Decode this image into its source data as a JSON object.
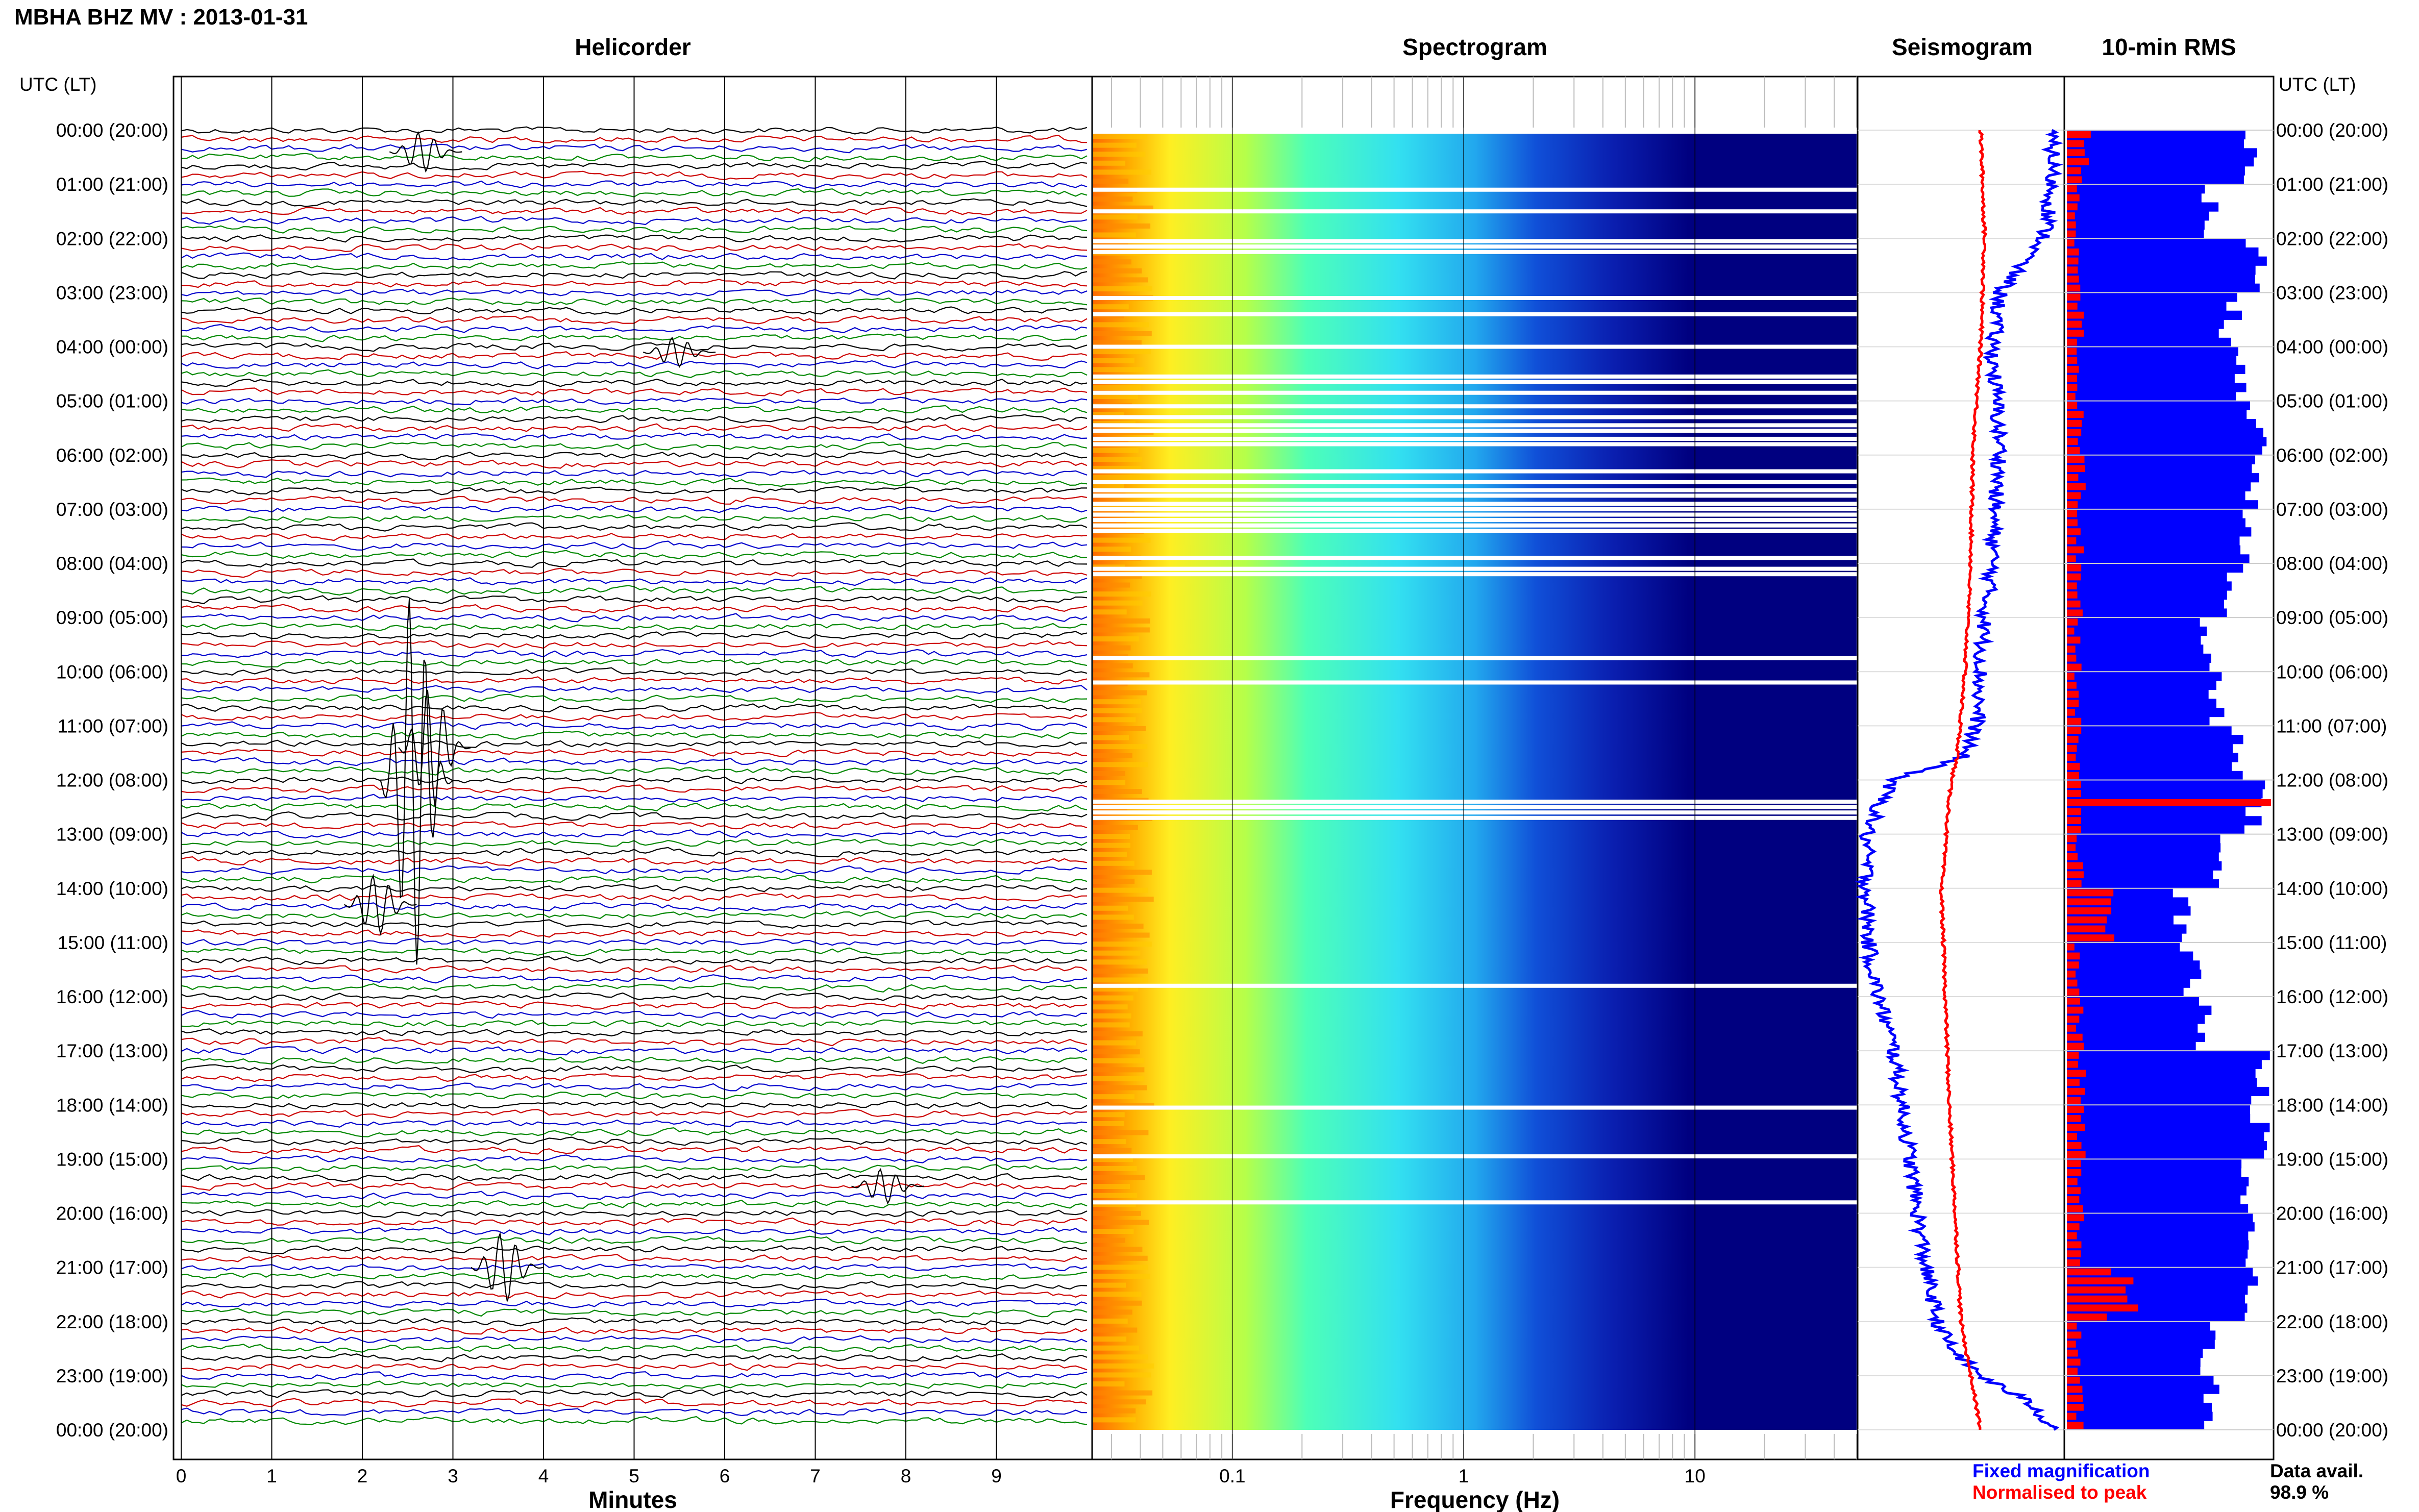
{
  "header": {
    "title": "MBHA BHZ MV : 2013-01-31",
    "utc_label_left": "UTC (LT)",
    "utc_label_right": "UTC (LT)"
  },
  "panels": {
    "helicorder": "Helicorder",
    "spectrogram": "Spectrogram",
    "seismogram": "Seismogram",
    "rms": "10-min RMS"
  },
  "colors": {
    "trace_cycle": [
      "#000000",
      "#cc0000",
      "#0000cc",
      "#008800"
    ],
    "spec_low": "#000080",
    "fixed_magnification": "#0000ff",
    "normalised_to_peak": "#ff0000"
  },
  "legend": {
    "fixed_magnification": "Fixed magnification",
    "normalised_to_peak": "Normalised to peak",
    "data_avail_label": "Data avail.",
    "data_avail_value": "98.9 %"
  },
  "chart_data": [
    {
      "type": "line",
      "title": "Helicorder",
      "xlabel": "Minutes",
      "x_ticks": [
        "0",
        "1",
        "2",
        "3",
        "4",
        "5",
        "6",
        "7",
        "8",
        "9"
      ],
      "xlim": [
        0,
        10
      ],
      "rows": 144,
      "row_minutes": 10,
      "hour_labels": [
        "00:00 (20:00)",
        "01:00 (21:00)",
        "02:00 (22:00)",
        "03:00 (23:00)",
        "04:00 (00:00)",
        "05:00 (01:00)",
        "06:00 (02:00)",
        "07:00 (03:00)",
        "08:00 (04:00)",
        "09:00 (05:00)",
        "10:00 (06:00)",
        "11:00 (07:00)",
        "12:00 (08:00)",
        "13:00 (09:00)",
        "14:00 (10:00)",
        "15:00 (11:00)",
        "16:00 (12:00)",
        "17:00 (13:00)",
        "18:00 (14:00)",
        "19:00 (15:00)",
        "20:00 (16:00)",
        "21:00 (17:00)",
        "22:00 (18:00)",
        "23:00 (19:00)",
        "00:00 (20:00)"
      ]
    },
    {
      "type": "heatmap",
      "title": "Spectrogram",
      "xlabel": "Frequency (Hz)",
      "x_scale": "log",
      "x_ticks": [
        "0.1",
        "1",
        "10"
      ],
      "xlim": [
        0.025,
        50
      ],
      "y_hours": [
        0,
        24
      ],
      "gap_hours": [
        1.1,
        1.5,
        2.05,
        2.15,
        2.25,
        3.1,
        3.4,
        4.0,
        4.55,
        4.65,
        4.85,
        5.1,
        5.3,
        5.45,
        5.55,
        5.7,
        5.8,
        6.3,
        6.5,
        6.65,
        6.75,
        6.9,
        7.0,
        7.1,
        7.2,
        7.3,
        7.4,
        7.9,
        8.1,
        8.2,
        9.75,
        10.2,
        12.4,
        12.5,
        12.6,
        12.7,
        15.8,
        18.05,
        18.95,
        19.8
      ]
    },
    {
      "type": "line",
      "title": "Seismogram",
      "series": [
        {
          "name": "Fixed magnification",
          "x": [
            0,
            0.5,
            1,
            1.5,
            2,
            2.5,
            3,
            3.5,
            4,
            5,
            6,
            7,
            8,
            9,
            10,
            11,
            11.6,
            12,
            12.5,
            13,
            14,
            15,
            15.5,
            16,
            17,
            18,
            19,
            20,
            21,
            22,
            22.5,
            23,
            23.5,
            24
          ],
          "y": [
            0.95,
            0.97,
            0.96,
            0.95,
            0.92,
            0.8,
            0.7,
            0.68,
            0.66,
            0.68,
            0.7,
            0.67,
            0.66,
            0.62,
            0.6,
            0.58,
            0.5,
            0.15,
            0.08,
            0.02,
            0.02,
            0.03,
            0.05,
            0.08,
            0.16,
            0.2,
            0.24,
            0.28,
            0.32,
            0.38,
            0.45,
            0.6,
            0.85,
            0.98
          ]
        },
        {
          "name": "Normalised to peak",
          "x": [
            0,
            2,
            4,
            6,
            8,
            10,
            11.6,
            12,
            14,
            16,
            18,
            20,
            22,
            23,
            24
          ],
          "y": [
            0.6,
            0.62,
            0.6,
            0.56,
            0.55,
            0.52,
            0.48,
            0.45,
            0.4,
            0.42,
            0.44,
            0.47,
            0.5,
            0.55,
            0.6
          ]
        }
      ]
    },
    {
      "type": "bar",
      "title": "10-min RMS",
      "orientation": "horizontal",
      "intervals": 144,
      "series": [
        {
          "name": "Fixed magnification",
          "hourly_levels": [
            0.88,
            0.7,
            0.93,
            0.8,
            0.88,
            0.92,
            0.92,
            0.9,
            0.82,
            0.7,
            0.75,
            0.82,
            0.92,
            0.72,
            0.55,
            0.6,
            0.68,
            0.96,
            0.95,
            0.88,
            0.9,
            0.88,
            0.7,
            0.72
          ]
        },
        {
          "name": "Normalised to peak",
          "hourly_levels": [
            0.1,
            0.06,
            0.06,
            0.07,
            0.06,
            0.07,
            0.08,
            0.07,
            0.07,
            0.06,
            0.06,
            0.07,
            1.0,
            0.07,
            0.2,
            0.06,
            0.07,
            0.08,
            0.08,
            0.07,
            0.08,
            0.3,
            0.06,
            0.07
          ]
        }
      ]
    }
  ]
}
